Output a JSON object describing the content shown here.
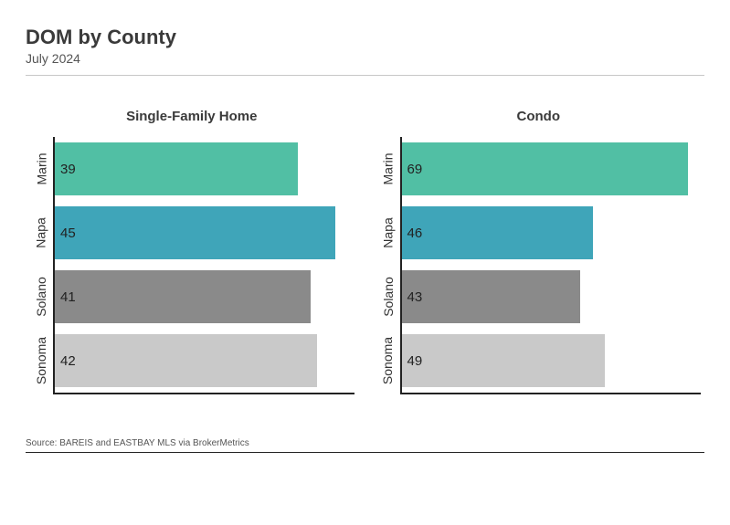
{
  "title": "DOM by County",
  "subtitle": "July 2024",
  "title_fontsize": 22,
  "subtitle_fontsize": 14,
  "panel_title_fontsize": 15,
  "source": "Source:  BAREIS and EASTBAY MLS via BrokerMetrics",
  "background_color": "#ffffff",
  "axis_color": "#222222",
  "text_color": "#333333",
  "panels": [
    {
      "title": "Single-Family Home",
      "xmax": 48,
      "bars": [
        {
          "label": "Marin",
          "value": 39,
          "color": "#51bfa4"
        },
        {
          "label": "Napa",
          "value": 45,
          "color": "#3fa5b9"
        },
        {
          "label": "Solano",
          "value": 41,
          "color": "#8a8a8a"
        },
        {
          "label": "Sonoma",
          "value": 42,
          "color": "#c9c9c9"
        }
      ]
    },
    {
      "title": "Condo",
      "xmax": 72,
      "bars": [
        {
          "label": "Marin",
          "value": 69,
          "color": "#51bfa4"
        },
        {
          "label": "Napa",
          "value": 46,
          "color": "#3fa5b9"
        },
        {
          "label": "Solano",
          "value": 43,
          "color": "#8a8a8a"
        },
        {
          "label": "Sonoma",
          "value": 49,
          "color": "#c9c9c9"
        }
      ]
    }
  ]
}
